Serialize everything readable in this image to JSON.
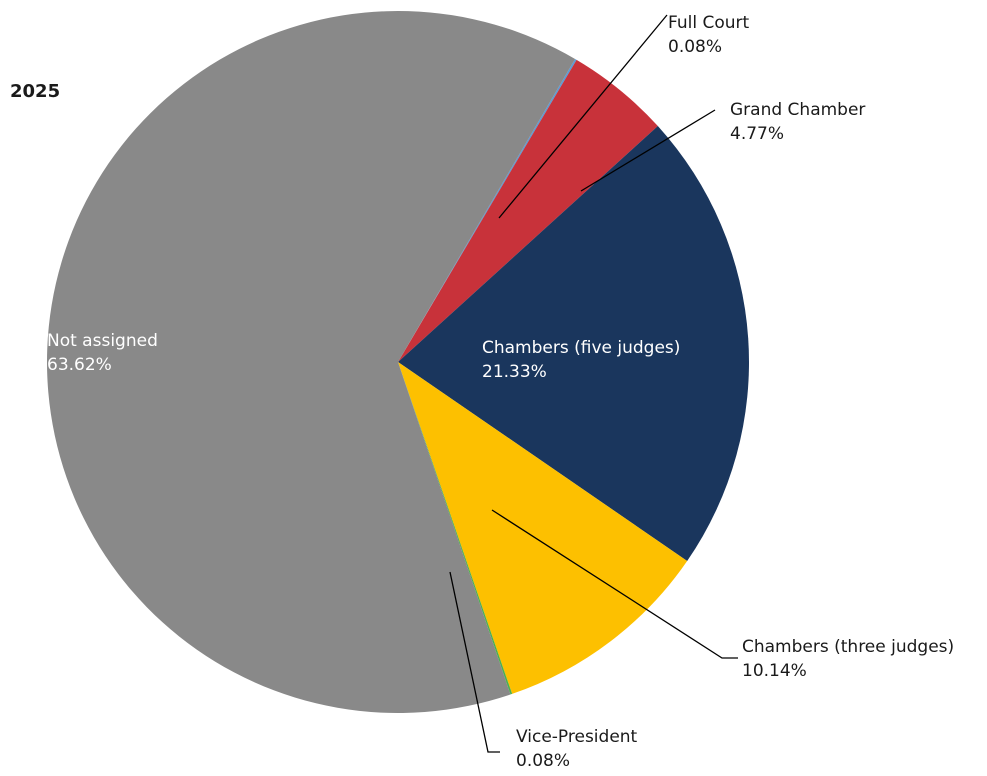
{
  "chart_data": {
    "type": "pie",
    "title": "2025",
    "slices": [
      {
        "label": "Full Court",
        "value": 0.08,
        "display": "0.08%",
        "color": "#5b9bd5"
      },
      {
        "label": "Grand Chamber",
        "value": 4.77,
        "display": "4.77%",
        "color": "#c8323a"
      },
      {
        "label": "Chambers (five judges)",
        "value": 21.33,
        "display": "21.33%",
        "color": "#1a365d"
      },
      {
        "label": "Chambers (three judges)",
        "value": 10.14,
        "display": "10.14%",
        "color": "#fdc000"
      },
      {
        "label": "Vice-President",
        "value": 0.08,
        "display": "0.08%",
        "color": "#4caf50"
      },
      {
        "label": "Not assigned",
        "value": 63.62,
        "display": "63.62%",
        "color": "#898989"
      }
    ]
  }
}
